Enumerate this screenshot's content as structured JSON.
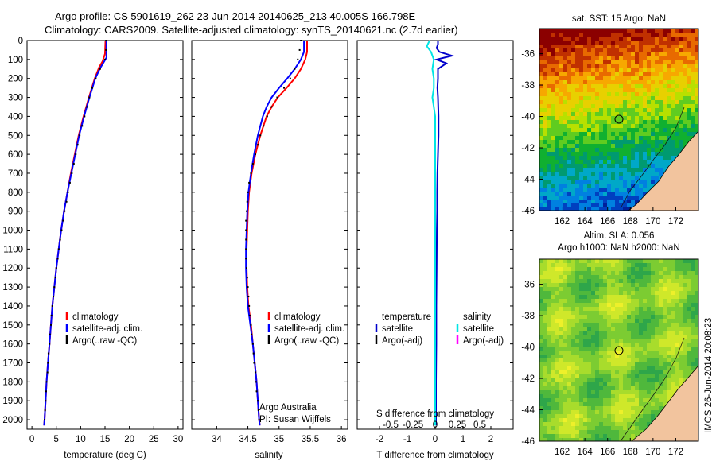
{
  "header": {
    "line1": "Argo profile: CS 5901619_262 23-Jun-2014 20140625_213 40.005S 166.798E",
    "line2": "Climatology: CARS2009. Satellite-adjusted climatology: synTS_20140621.nc (2.7d earlier)"
  },
  "timestamp": "IMOS 26-Jun-2014 20:08:23",
  "colors": {
    "climatology": "#ff0000",
    "satellite_adj": "#0000ff",
    "argo": "#000000",
    "temp_sat": "#0000cc",
    "sal_sat": "#00e5e5",
    "sal_argo": "#ff00ff",
    "land": "#f2c49e"
  },
  "chart_data": [
    {
      "type": "line",
      "panel": "temperature",
      "xlabel": "temperature (deg C)",
      "xlim": [
        -1,
        31
      ],
      "xticks": [
        "0",
        "5",
        "10",
        "15",
        "20",
        "25",
        "30"
      ],
      "xtick_values": [
        0,
        5,
        10,
        15,
        20,
        25,
        30
      ],
      "ylim": [
        0,
        2050
      ],
      "yticks": [
        "0",
        "100",
        "200",
        "300",
        "400",
        "500",
        "600",
        "700",
        "800",
        "900",
        "1000",
        "1100",
        "1200",
        "1300",
        "1400",
        "1500",
        "1600",
        "1700",
        "1800",
        "1900",
        "2000"
      ],
      "legend": [
        "climatology",
        "satellite-adj. clim.",
        "Argo(..raw -QC)"
      ],
      "series": [
        {
          "name": "climatology",
          "style": "line",
          "color": "#ff0000",
          "depth": [
            0,
            70,
            110,
            140,
            200,
            300,
            400,
            500,
            600,
            700,
            800,
            900,
            1000,
            1100,
            1200,
            1300,
            1400,
            1500,
            1600,
            1700,
            1800,
            1900,
            2000,
            2030
          ],
          "values": [
            15.1,
            15.0,
            14.5,
            13.8,
            12.9,
            11.7,
            10.6,
            9.6,
            8.8,
            8.0,
            7.3,
            6.6,
            6.0,
            5.5,
            5.0,
            4.6,
            4.2,
            3.9,
            3.6,
            3.3,
            3.0,
            2.8,
            2.6,
            2.5
          ]
        },
        {
          "name": "satellite-adj. clim.",
          "style": "line",
          "color": "#0000ff",
          "depth": [
            0,
            90,
            120,
            150,
            200,
            300,
            400,
            500,
            600,
            700,
            800,
            900,
            1000,
            1100,
            1200,
            1300,
            1400,
            1500,
            1600,
            1700,
            1800,
            1900,
            2000,
            2030
          ],
          "values": [
            15.3,
            15.3,
            14.6,
            13.9,
            13.0,
            11.8,
            10.7,
            9.7,
            8.9,
            8.1,
            7.3,
            6.6,
            6.0,
            5.5,
            5.0,
            4.6,
            4.2,
            3.9,
            3.6,
            3.3,
            3.0,
            2.8,
            2.6,
            2.5
          ]
        },
        {
          "name": "Argo(..raw -QC)",
          "style": "dots",
          "color": "#000000",
          "depth": [
            0,
            50,
            100,
            150,
            200,
            250,
            300,
            350,
            400,
            450,
            500,
            550,
            600,
            650,
            700,
            750,
            800,
            850,
            900,
            950,
            1000,
            1050,
            1100,
            1150,
            1200,
            1250,
            1300,
            1350,
            1400,
            1450,
            1500,
            1550,
            1600,
            1650,
            1700,
            1750,
            1800,
            1850,
            1900,
            1950,
            2000
          ],
          "values": [
            15.2,
            15.2,
            15.0,
            14.0,
            13.1,
            12.4,
            11.8,
            11.3,
            10.8,
            10.3,
            9.8,
            9.4,
            9.0,
            8.6,
            8.2,
            7.8,
            7.4,
            7.1,
            6.7,
            6.4,
            6.1,
            5.8,
            5.5,
            5.3,
            5.0,
            4.8,
            4.6,
            4.4,
            4.2,
            4.0,
            3.9,
            3.7,
            3.6,
            3.4,
            3.3,
            3.2,
            3.0,
            2.9,
            2.8,
            2.7,
            2.6
          ]
        }
      ]
    },
    {
      "type": "line",
      "panel": "salinity",
      "xlabel": "salinity",
      "xlim": [
        33.6,
        36.1
      ],
      "xticks": [
        "34",
        "34.5",
        "35",
        "35.5",
        "36"
      ],
      "xtick_values": [
        34,
        34.5,
        35,
        35.5,
        36
      ],
      "ylim": [
        0,
        2050
      ],
      "legend": [
        "climatology",
        "satellite-adj. clim.",
        "Argo(..raw -QC)"
      ],
      "annotation": [
        "Argo Australia",
        "PI: Susan Wijffels"
      ],
      "series": [
        {
          "name": "climatology",
          "style": "line",
          "color": "#ff0000",
          "depth": [
            0,
            60,
            100,
            150,
            200,
            250,
            300,
            350,
            400,
            500,
            600,
            700,
            800,
            900,
            1000,
            1100,
            1200,
            1300,
            1400,
            1500,
            1600,
            1700,
            1800,
            1900,
            2000,
            2030
          ],
          "values": [
            35.45,
            35.45,
            35.42,
            35.35,
            35.25,
            35.12,
            34.98,
            34.88,
            34.8,
            34.7,
            34.62,
            34.56,
            34.52,
            34.5,
            34.49,
            34.48,
            34.48,
            34.49,
            34.51,
            34.55,
            34.58,
            34.61,
            34.64,
            34.66,
            34.68,
            34.69
          ]
        },
        {
          "name": "satellite-adj. clim.",
          "style": "line",
          "color": "#0000ff",
          "depth": [
            0,
            60,
            100,
            150,
            200,
            250,
            300,
            350,
            400,
            500,
            600,
            700,
            800,
            900,
            1000,
            1100,
            1200,
            1300,
            1400,
            1500,
            1600,
            1700,
            1800,
            1900,
            2000,
            2030
          ],
          "values": [
            35.4,
            35.4,
            35.35,
            35.25,
            35.13,
            35.0,
            34.88,
            34.8,
            34.74,
            34.66,
            34.6,
            34.55,
            34.51,
            34.49,
            34.48,
            34.47,
            34.47,
            34.48,
            34.5,
            34.54,
            34.58,
            34.61,
            34.64,
            34.66,
            34.68,
            34.69
          ]
        },
        {
          "name": "Argo(..raw -QC)",
          "style": "dots",
          "color": "#000000",
          "depth": [
            0,
            50,
            100,
            150,
            200,
            250,
            300,
            350,
            400,
            450,
            500,
            550,
            600,
            650,
            700,
            750,
            800,
            850,
            900,
            950,
            1000,
            1050,
            1100,
            1150,
            1200,
            1250,
            1300,
            1350,
            1400,
            1450,
            1500,
            1550,
            1600,
            1650,
            1700,
            1750,
            1800,
            1850,
            1900,
            1950,
            2000
          ],
          "values": [
            35.35,
            35.33,
            35.3,
            35.25,
            35.18,
            35.08,
            34.97,
            34.88,
            34.81,
            34.75,
            34.7,
            34.66,
            34.62,
            34.58,
            34.55,
            34.52,
            34.5,
            34.49,
            34.48,
            34.47,
            34.47,
            34.47,
            34.47,
            34.47,
            34.48,
            34.49,
            34.5,
            34.51,
            34.52,
            34.53,
            34.55,
            34.56,
            34.58,
            34.59,
            34.6,
            34.62,
            34.63,
            34.64,
            34.66,
            34.67,
            34.68
          ]
        }
      ]
    },
    {
      "type": "line",
      "panel": "difference",
      "xlabel_bottom": "T difference from climatology",
      "xlabel_top": "S difference from climatology",
      "xlim": [
        -2.8,
        2.8
      ],
      "xticks": [
        "-2",
        "-1",
        "0",
        "1",
        "2"
      ],
      "xtick_values": [
        -2,
        -1,
        0,
        1,
        2
      ],
      "top_ticks": [
        "-0.5",
        "-0.25",
        "0",
        "0.25",
        "0.5"
      ],
      "ylim": [
        0,
        2050
      ],
      "legend_temperature": {
        "heading": "temperature",
        "items": [
          "satellite",
          "Argo(-adj)"
        ]
      },
      "legend_salinity": {
        "heading": "salinity",
        "items": [
          "satellite",
          "Argo(-adj)"
        ]
      },
      "series": [
        {
          "name": "temperature satellite",
          "style": "line",
          "color": "#0000cc",
          "depth": [
            0,
            20,
            40,
            60,
            80,
            100,
            120,
            150,
            200,
            250,
            300,
            400,
            500,
            600,
            700,
            800,
            900,
            1000,
            1200,
            1400,
            1600,
            1800,
            2000,
            2030
          ],
          "values": [
            0.1,
            0.1,
            0.05,
            0.15,
            0.6,
            0.05,
            0.4,
            0.1,
            0.1,
            0.08,
            0.1,
            0.12,
            0.12,
            0.1,
            0.08,
            0.07,
            0.07,
            0.06,
            0.05,
            0.04,
            0.04,
            0.03,
            0.03,
            0.03
          ]
        },
        {
          "name": "salinity satellite",
          "style": "line",
          "color": "#00e5e5",
          "depth": [
            0,
            30,
            60,
            80,
            100,
            150,
            200,
            250,
            300,
            350,
            400,
            500,
            600,
            700,
            800,
            900,
            1000,
            1200,
            1400,
            1600,
            1800,
            2000,
            2030
          ],
          "values": [
            -0.2,
            -0.3,
            -0.15,
            -0.1,
            -0.05,
            -0.1,
            -0.05,
            -0.05,
            -0.1,
            -0.05,
            0,
            0,
            0,
            0,
            0,
            0,
            0,
            0,
            0,
            0,
            0,
            0,
            0
          ]
        }
      ]
    },
    {
      "type": "heatmap",
      "panel": "sst_map",
      "title": "sat. SST: 15 Argo: NaN",
      "xlim": [
        160,
        174
      ],
      "ylim": [
        -46,
        -34.4
      ],
      "xticks": [
        "162",
        "164",
        "166",
        "168",
        "170",
        "172"
      ],
      "xtick_values": [
        162,
        164,
        166,
        168,
        170,
        172
      ],
      "yticks": [
        "-36",
        "-38",
        "-40",
        "-42",
        "-44",
        "-46"
      ],
      "ytick_values": [
        -36,
        -38,
        -40,
        -42,
        -44,
        -46
      ],
      "marker": {
        "lon": 166.8,
        "lat": -40.0
      },
      "colorscale": [
        "#8b0000",
        "#c03000",
        "#e86a00",
        "#f7a800",
        "#e8d000",
        "#b8e000",
        "#60cc20",
        "#10b030",
        "#009a70",
        "#00a8c8",
        "#0080e0",
        "#0040c0",
        "#00209a"
      ]
    },
    {
      "type": "heatmap",
      "panel": "sla_map",
      "title": "Altim. SLA: 0.056",
      "subtitle": "Argo h1000: NaN h2000: NaN",
      "xlim": [
        160,
        174
      ],
      "ylim": [
        -46,
        -34.4
      ],
      "xticks": [
        "162",
        "164",
        "166",
        "168",
        "170",
        "172"
      ],
      "xtick_values": [
        162,
        164,
        166,
        168,
        170,
        172
      ],
      "yticks": [
        "-36",
        "-38",
        "-40",
        "-42",
        "-44",
        "-46"
      ],
      "ytick_values": [
        -36,
        -38,
        -40,
        -42,
        -44,
        -46
      ],
      "marker": {
        "lon": 166.8,
        "lat": -40.0
      },
      "colorscale": [
        "#2ea64a",
        "#4fb83c",
        "#7ccc32",
        "#a8dc2c",
        "#cfe82a",
        "#eef02a"
      ]
    }
  ]
}
